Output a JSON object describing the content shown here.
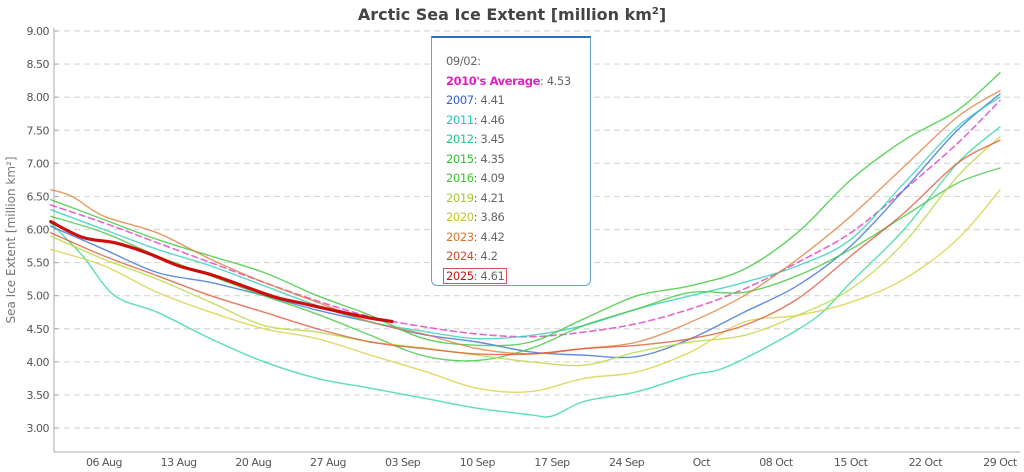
{
  "chart_data": {
    "type": "line",
    "title": "Arctic Sea Ice Extent [million km²]",
    "title_main": "Arctic Sea Ice Extent [million km",
    "title_sup": "2",
    "title_end": "]",
    "xlabel": "",
    "ylabel": "Sea Ice Extent [million km²]",
    "ylim": [
      2.75,
      9.0
    ],
    "yticks": [
      "9.00",
      "8.50",
      "8.00",
      "7.50",
      "7.00",
      "6.50",
      "6.00",
      "5.50",
      "5.00",
      "4.50",
      "4.00",
      "3.50",
      "3.00"
    ],
    "ytick_values": [
      9.0,
      8.5,
      8.0,
      7.5,
      7.0,
      6.5,
      6.0,
      5.5,
      5.0,
      4.5,
      4.0,
      3.5,
      3.0
    ],
    "grid": true,
    "x_domain_days": [
      0,
      89
    ],
    "x_day0": "01 Aug",
    "xticks": [
      {
        "label": "06 Aug",
        "day": 5
      },
      {
        "label": "13 Aug",
        "day": 12
      },
      {
        "label": "20 Aug",
        "day": 19
      },
      {
        "label": "27 Aug",
        "day": 26
      },
      {
        "label": "03 Sep",
        "day": 33
      },
      {
        "label": "10 Sep",
        "day": 40
      },
      {
        "label": "17 Sep",
        "day": 47
      },
      {
        "label": "24 Sep",
        "day": 54
      },
      {
        "label": "Oct",
        "day": 61
      },
      {
        "label": "08 Oct",
        "day": 68
      },
      {
        "label": "15 Oct",
        "day": 75
      },
      {
        "label": "22 Oct",
        "day": 82
      },
      {
        "label": "29 Oct",
        "day": 89
      }
    ],
    "series": [
      {
        "name": "2010's Average",
        "color": "#e040c0",
        "dashed": true,
        "width": 1.6,
        "days": [
          0,
          5,
          10,
          15,
          20,
          25,
          30,
          35,
          40,
          45,
          50,
          55,
          60,
          65,
          70,
          75,
          80,
          85,
          89
        ],
        "values": [
          6.37,
          6.1,
          5.8,
          5.5,
          5.2,
          4.92,
          4.68,
          4.53,
          4.42,
          4.38,
          4.45,
          4.58,
          4.8,
          5.1,
          5.5,
          5.95,
          6.6,
          7.3,
          7.95
        ]
      },
      {
        "name": "2007",
        "color": "#3a6fd8",
        "width": 1.4,
        "days": [
          0,
          5,
          10,
          15,
          20,
          25,
          30,
          35,
          40,
          45,
          50,
          55,
          60,
          65,
          70,
          75,
          80,
          85,
          89
        ],
        "values": [
          6.05,
          5.7,
          5.35,
          5.2,
          5.0,
          4.78,
          4.6,
          4.41,
          4.3,
          4.15,
          4.1,
          4.08,
          4.35,
          4.75,
          5.15,
          5.75,
          6.6,
          7.5,
          8.05
        ]
      },
      {
        "name": "2011",
        "color": "#30d0b8",
        "width": 1.4,
        "days": [
          0,
          5,
          10,
          15,
          20,
          25,
          30,
          35,
          40,
          45,
          50,
          55,
          60,
          65,
          70,
          75,
          80,
          85,
          89
        ],
        "values": [
          6.3,
          6.0,
          5.7,
          5.45,
          5.15,
          4.85,
          4.6,
          4.46,
          4.35,
          4.4,
          4.55,
          4.8,
          5.0,
          5.2,
          5.45,
          5.85,
          6.7,
          7.55,
          8.0
        ]
      },
      {
        "name": "2012",
        "color": "#30d898",
        "width": 1.4,
        "days": [
          0,
          3,
          6,
          10,
          15,
          20,
          25,
          30,
          35,
          40,
          45,
          47,
          50,
          55,
          60,
          63,
          68,
          72,
          75,
          80,
          85,
          89
        ],
        "values": [
          6.1,
          5.6,
          5.0,
          4.75,
          4.35,
          4.0,
          3.75,
          3.6,
          3.45,
          3.3,
          3.2,
          3.18,
          3.4,
          3.55,
          3.8,
          3.9,
          4.3,
          4.7,
          5.2,
          6.0,
          7.0,
          7.55
        ]
      },
      {
        "name": "2015",
        "color": "#38c838",
        "width": 1.4,
        "days": [
          0,
          5,
          10,
          15,
          20,
          25,
          30,
          35,
          40,
          45,
          50,
          55,
          60,
          65,
          70,
          75,
          80,
          85,
          89
        ],
        "values": [
          6.45,
          6.15,
          5.85,
          5.6,
          5.35,
          5.0,
          4.7,
          4.35,
          4.25,
          4.3,
          4.65,
          5.0,
          5.15,
          5.4,
          5.95,
          6.75,
          7.35,
          7.8,
          8.37
        ]
      },
      {
        "name": "2016",
        "color": "#40c840",
        "width": 1.4,
        "days": [
          0,
          5,
          10,
          15,
          20,
          25,
          30,
          35,
          40,
          45,
          50,
          55,
          60,
          65,
          70,
          75,
          80,
          85,
          89
        ],
        "values": [
          6.2,
          5.95,
          5.6,
          5.3,
          5.0,
          4.72,
          4.4,
          4.09,
          4.02,
          4.2,
          4.55,
          4.8,
          5.05,
          5.05,
          5.3,
          5.7,
          6.2,
          6.7,
          6.93
        ]
      },
      {
        "name": "2019",
        "color": "#b8d840",
        "width": 1.4,
        "days": [
          0,
          5,
          10,
          15,
          20,
          25,
          30,
          35,
          40,
          45,
          50,
          55,
          60,
          65,
          70,
          75,
          80,
          85,
          89
        ],
        "values": [
          5.9,
          5.55,
          5.25,
          4.9,
          4.55,
          4.45,
          4.3,
          4.21,
          4.1,
          4.0,
          3.95,
          4.15,
          4.3,
          4.4,
          4.7,
          5.1,
          5.8,
          6.8,
          7.4
        ]
      },
      {
        "name": "2020",
        "color": "#d8d040",
        "width": 1.4,
        "days": [
          0,
          5,
          10,
          15,
          20,
          25,
          30,
          35,
          40,
          45,
          50,
          55,
          60,
          65,
          70,
          75,
          80,
          85,
          89
        ],
        "values": [
          5.7,
          5.45,
          5.05,
          4.75,
          4.5,
          4.35,
          4.1,
          3.86,
          3.6,
          3.55,
          3.75,
          3.85,
          4.15,
          4.6,
          4.7,
          4.9,
          5.25,
          5.85,
          6.6
        ]
      },
      {
        "name": "2023",
        "color": "#e08040",
        "width": 1.4,
        "days": [
          0,
          2,
          5,
          10,
          15,
          20,
          25,
          30,
          35,
          40,
          45,
          50,
          55,
          60,
          65,
          70,
          75,
          80,
          85,
          89
        ],
        "values": [
          6.6,
          6.5,
          6.2,
          5.95,
          5.55,
          5.2,
          4.9,
          4.6,
          4.42,
          4.2,
          4.12,
          4.2,
          4.3,
          4.6,
          5.0,
          5.55,
          6.2,
          6.95,
          7.7,
          8.1
        ]
      },
      {
        "name": "2024",
        "color": "#e05838",
        "width": 1.4,
        "days": [
          0,
          5,
          10,
          15,
          20,
          25,
          30,
          35,
          40,
          45,
          50,
          55,
          60,
          65,
          70,
          75,
          80,
          85,
          89
        ],
        "values": [
          5.95,
          5.6,
          5.3,
          5.0,
          4.75,
          4.5,
          4.3,
          4.2,
          4.12,
          4.12,
          4.2,
          4.25,
          4.35,
          4.55,
          4.95,
          5.6,
          6.25,
          7.0,
          7.35
        ]
      },
      {
        "name": "2025",
        "color": "#cc0000",
        "width": 3.2,
        "days": [
          0,
          3,
          6,
          9,
          12,
          15,
          18,
          21,
          24,
          27,
          30,
          32
        ],
        "values": [
          6.12,
          5.88,
          5.8,
          5.65,
          5.45,
          5.32,
          5.15,
          4.98,
          4.87,
          4.76,
          4.66,
          4.61
        ]
      }
    ]
  },
  "tooltip": {
    "date": "09/02:",
    "rows": [
      {
        "label": "2010's Average",
        "value": "4.53",
        "color": "#e020c0",
        "bold": true
      },
      {
        "label": "2007",
        "value": "4.41",
        "color": "#3060d0"
      },
      {
        "label": "2011",
        "value": "4.46",
        "color": "#20c8b0"
      },
      {
        "label": "2012",
        "value": "3.45",
        "color": "#20c888"
      },
      {
        "label": "2015",
        "value": "4.35",
        "color": "#30c030"
      },
      {
        "label": "2016",
        "value": "4.09",
        "color": "#40c030"
      },
      {
        "label": "2019",
        "value": "4.21",
        "color": "#a8c830"
      },
      {
        "label": "2020",
        "value": "3.86",
        "color": "#c8c030"
      },
      {
        "label": "2023",
        "value": "4.42",
        "color": "#e07030"
      },
      {
        "label": "2024",
        "value": "4.2",
        "color": "#d84828"
      },
      {
        "label": "2025",
        "value": "4.61",
        "color": "#d01010",
        "highlight": true
      }
    ]
  }
}
